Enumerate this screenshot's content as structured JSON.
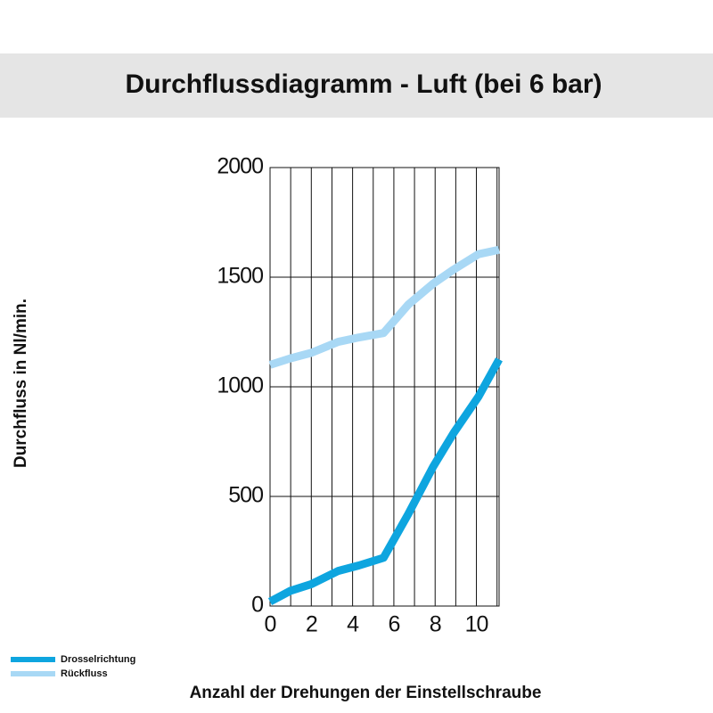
{
  "chart_data": {
    "type": "line",
    "title": "Durchflussdiagramm - Luft (bei 6 bar)",
    "y_label": "Durchfluss in Nl/min.",
    "x_label": "Anzahl der Drehungen der Einstellschraube",
    "x": [
      0,
      1,
      2,
      3.3,
      4.3,
      5.5,
      6.7,
      7.9,
      8.9,
      10.1,
      11.1
    ],
    "series": [
      {
        "name": "Drosselrichtung",
        "color": "#0ea5df",
        "values": [
          20,
          70,
          100,
          160,
          185,
          220,
          420,
          635,
          790,
          955,
          1125
        ]
      },
      {
        "name": "Rückfluss",
        "color": "#a8d8f5",
        "values": [
          1100,
          1130,
          1155,
          1205,
          1225,
          1245,
          1375,
          1470,
          1535,
          1605,
          1625
        ]
      }
    ],
    "xlim": [
      0,
      11.1
    ],
    "ylim": [
      0,
      2000
    ],
    "xticks": [
      0,
      2,
      4,
      6,
      8,
      10
    ],
    "xminor": [
      1,
      3,
      5,
      7,
      9,
      11
    ],
    "yticks": [
      0,
      500,
      1000,
      1500,
      2000
    ],
    "grid": true,
    "legend": "bottom-left"
  }
}
